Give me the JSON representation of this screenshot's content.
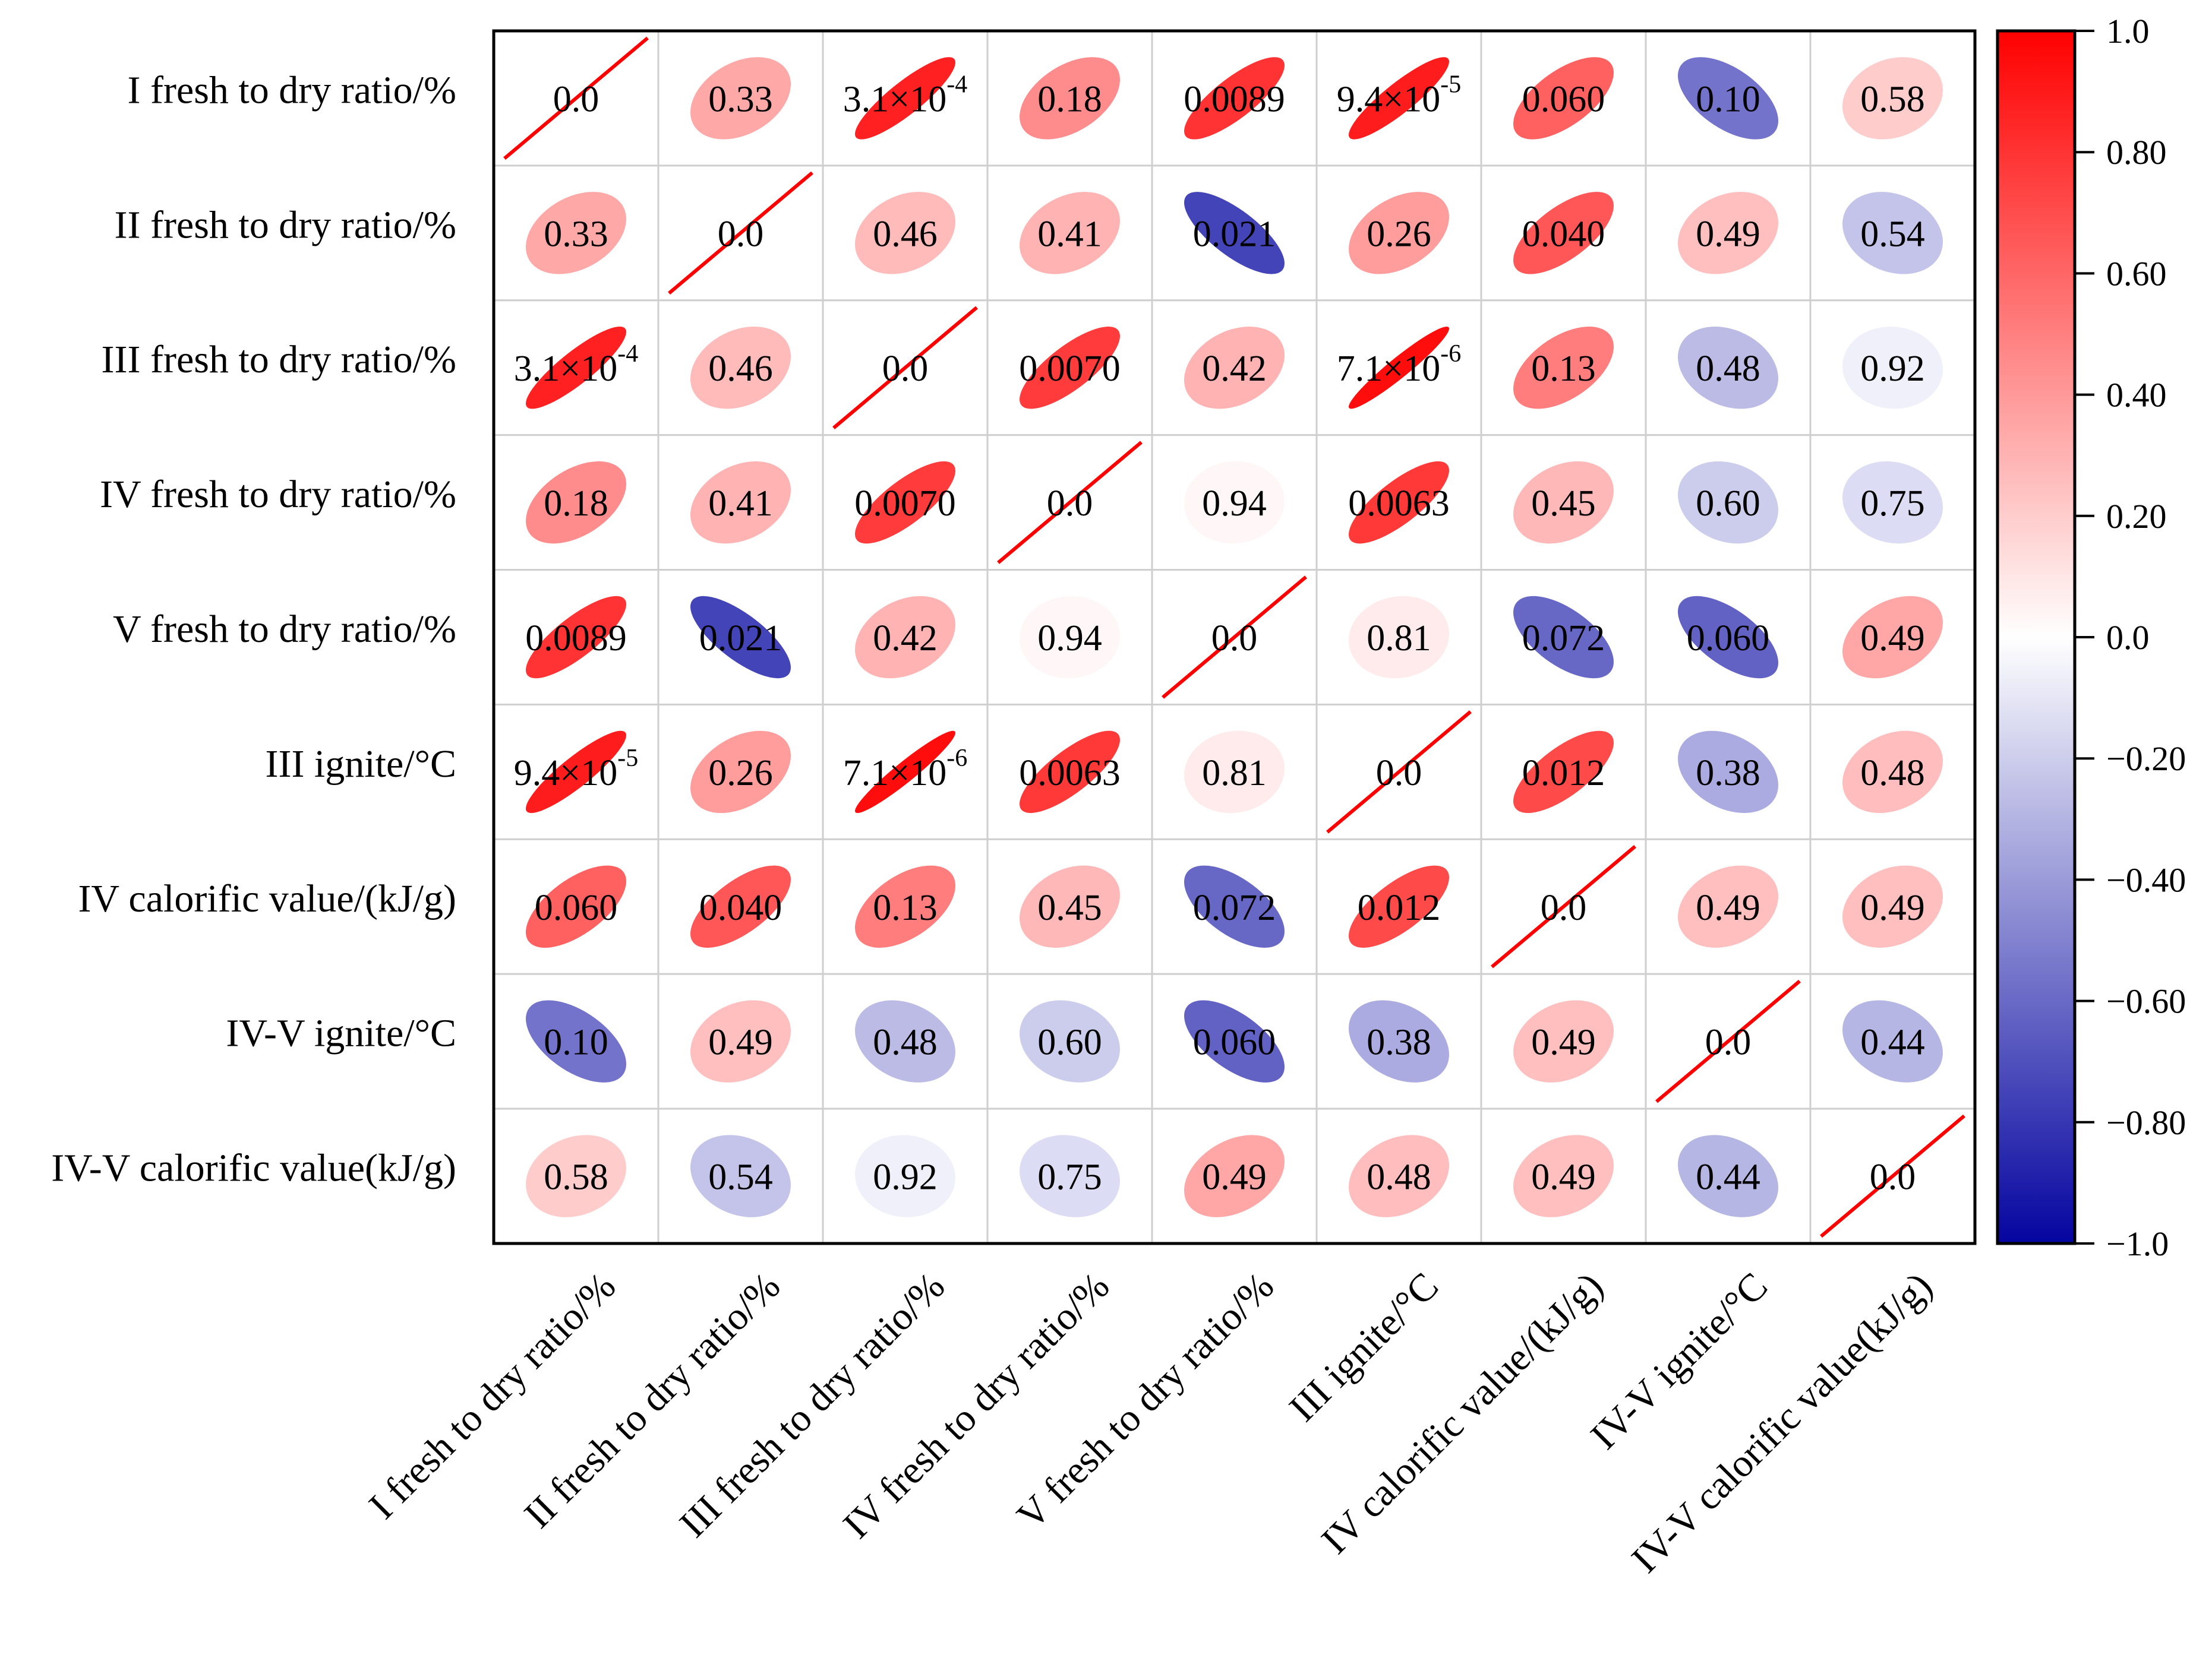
{
  "chart_data": {
    "type": "heatmap",
    "subtype": "correlation ellipse matrix",
    "title": "",
    "variables": [
      "I fresh to dry ratio/%",
      "II fresh to dry ratio/%",
      "III fresh to dry ratio/%",
      "IV fresh to dry ratio/%",
      "V fresh to dry ratio/%",
      "III ignite/°C",
      "IV calorific value/(kJ/g)",
      "IV-V ignite/°C",
      "IV-V calorific value(kJ/g)"
    ],
    "correlation_estimated": [
      [
        1.0,
        0.34,
        0.87,
        0.45,
        0.8,
        0.89,
        0.62,
        -0.55,
        0.2
      ],
      [
        0.34,
        1.0,
        0.27,
        0.3,
        -0.74,
        0.39,
        0.66,
        0.25,
        -0.22
      ],
      [
        0.87,
        0.27,
        1.0,
        0.77,
        0.3,
        0.95,
        0.51,
        -0.26,
        -0.04
      ],
      [
        0.45,
        0.3,
        0.77,
        1.0,
        0.03,
        0.78,
        0.28,
        -0.19,
        -0.12
      ],
      [
        0.8,
        -0.74,
        0.3,
        0.03,
        1.0,
        0.08,
        -0.6,
        -0.62,
        0.35
      ],
      [
        0.89,
        0.39,
        0.95,
        0.78,
        0.08,
        1.0,
        0.71,
        -0.32,
        0.26
      ],
      [
        0.62,
        0.66,
        0.51,
        0.28,
        -0.6,
        0.71,
        1.0,
        0.25,
        0.25
      ],
      [
        -0.55,
        0.25,
        -0.26,
        -0.19,
        -0.62,
        -0.32,
        0.25,
        1.0,
        -0.28
      ],
      [
        0.2,
        -0.22,
        -0.04,
        -0.12,
        0.35,
        0.26,
        0.25,
        -0.28,
        1.0
      ]
    ],
    "p_labels": [
      [
        "0.0",
        "0.33",
        {
          "base": "3.1×10",
          "exp": "-4"
        },
        "0.18",
        "0.0089",
        {
          "base": "9.4×10",
          "exp": "-5"
        },
        "0.060",
        "0.10",
        "0.58"
      ],
      [
        "0.33",
        "0.0",
        "0.46",
        "0.41",
        "0.021",
        "0.26",
        "0.040",
        "0.49",
        "0.54"
      ],
      [
        {
          "base": "3.1×10",
          "exp": "-4"
        },
        "0.46",
        "0.0",
        "0.0070",
        "0.42",
        {
          "base": "7.1×10",
          "exp": "-6"
        },
        "0.13",
        "0.48",
        "0.92"
      ],
      [
        "0.18",
        "0.41",
        "0.0070",
        "0.0",
        "0.94",
        "0.0063",
        "0.45",
        "0.60",
        "0.75"
      ],
      [
        "0.0089",
        "0.021",
        "0.42",
        "0.94",
        "0.0",
        "0.81",
        "0.072",
        "0.060",
        "0.49"
      ],
      [
        {
          "base": "9.4×10",
          "exp": "-5"
        },
        "0.26",
        {
          "base": "7.1×10",
          "exp": "-6"
        },
        "0.0063",
        "0.81",
        "0.0",
        "0.012",
        "0.38",
        "0.48"
      ],
      [
        "0.060",
        "0.040",
        "0.13",
        "0.45",
        "0.072",
        "0.012",
        "0.0",
        "0.49",
        "0.49"
      ],
      [
        "0.10",
        "0.49",
        "0.48",
        "0.60",
        "0.060",
        "0.38",
        "0.49",
        "0.0",
        "0.44"
      ],
      [
        "0.58",
        "0.54",
        "0.92",
        "0.75",
        "0.49",
        "0.48",
        "0.49",
        "0.44",
        "0.0"
      ]
    ],
    "colorbar": {
      "range": [
        -1.0,
        1.0
      ],
      "ticks": [
        1.0,
        0.8,
        0.6,
        0.4,
        0.2,
        0.0,
        -0.2,
        -0.4,
        -0.6,
        -0.8,
        -1.0
      ],
      "tick_labels": [
        "1.0",
        "0.80",
        "0.60",
        "0.40",
        "0.20",
        "0.0",
        "−0.20",
        "−0.40",
        "−0.60",
        "−0.80",
        "−1.0"
      ],
      "colors": {
        "neg": "#0505a0",
        "mid": "#ffffff",
        "pos": "#ff0000"
      }
    },
    "grid": true,
    "diagonal_line_color": "#ff0000",
    "legend": "right"
  }
}
